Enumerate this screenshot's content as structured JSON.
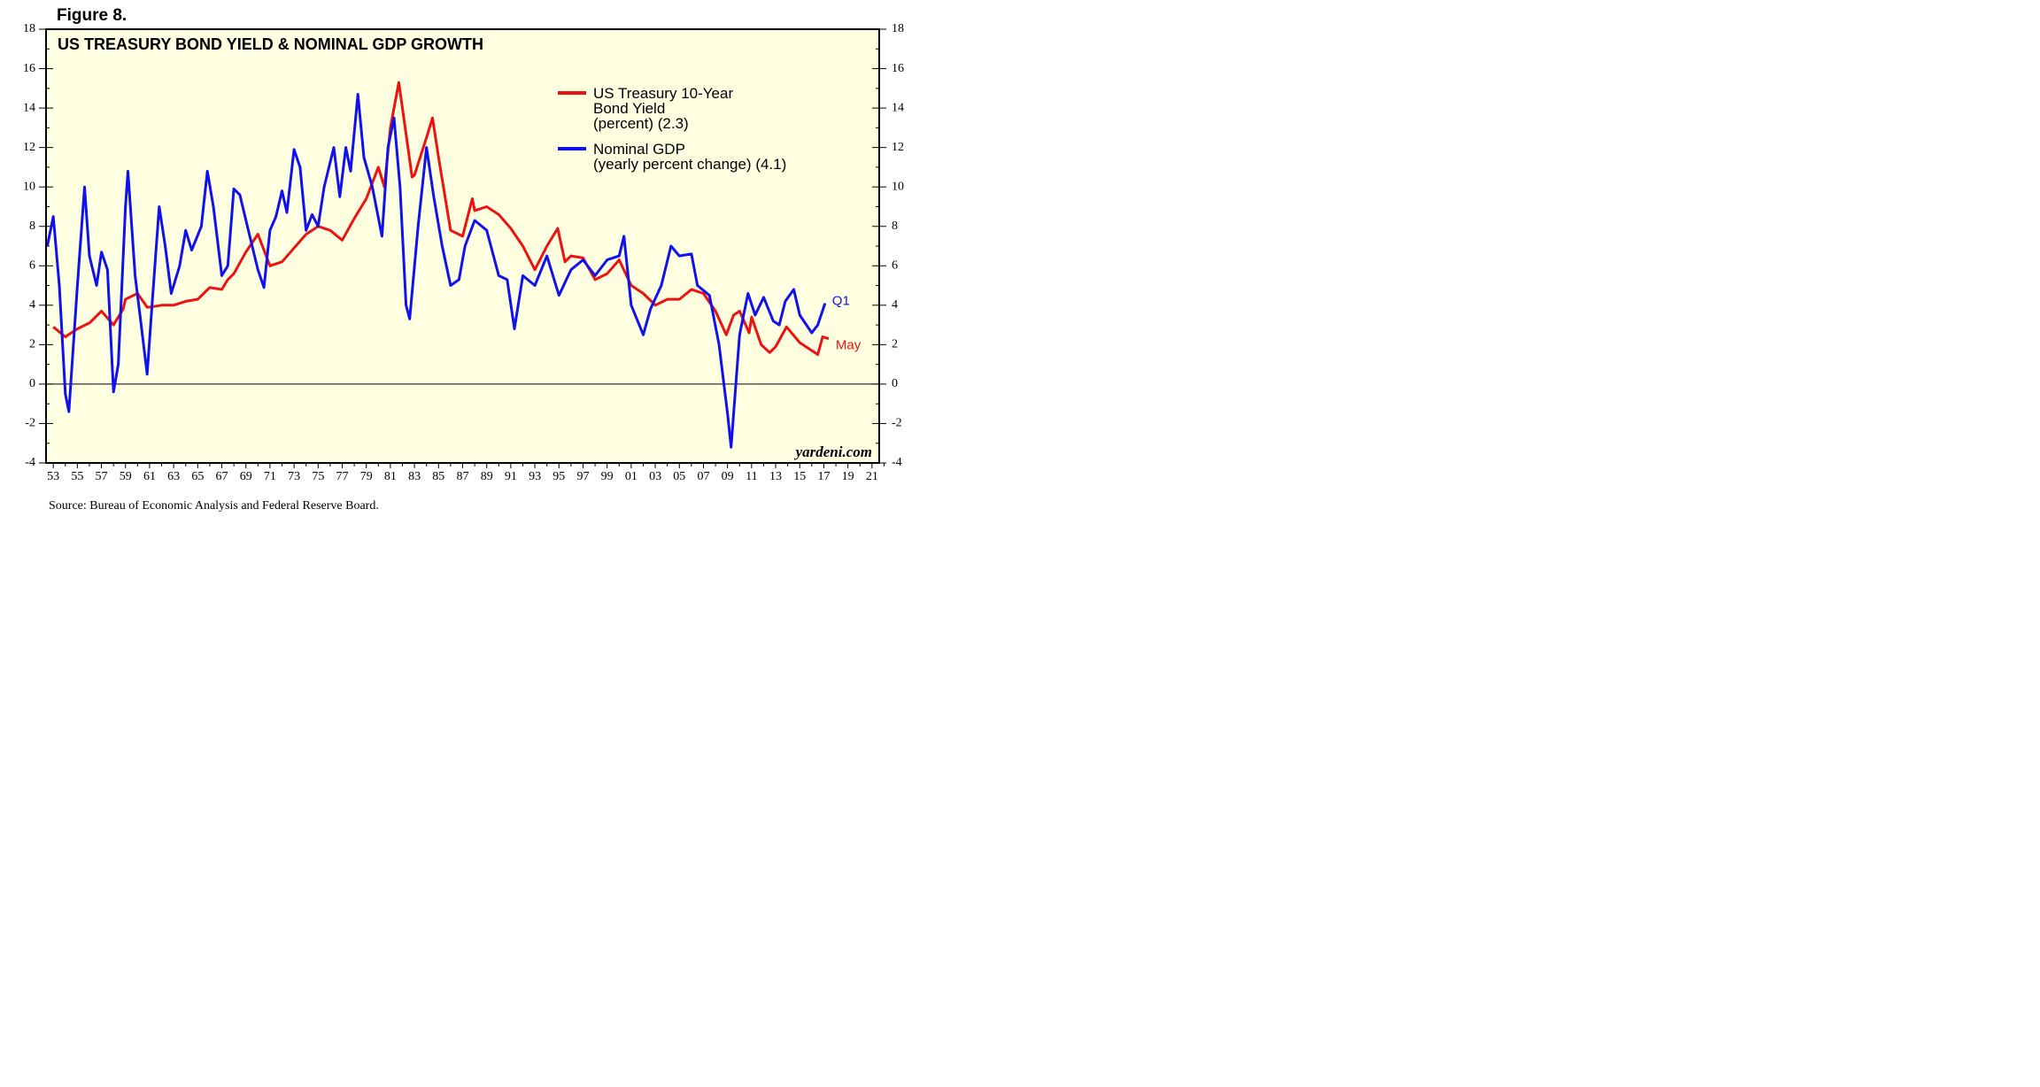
{
  "chart_data": {
    "type": "line",
    "figure_label": "Figure 8.",
    "title": "US TREASURY BOND YIELD & NOMINAL GDP GROWTH",
    "source": "Source: Bureau of Economic Analysis and Federal Reserve Board.",
    "watermark": "yardeni.com",
    "xlim": [
      1952.4,
      2021.6
    ],
    "xticks": [
      {
        "value": 1953,
        "label": "53"
      },
      {
        "value": 1955,
        "label": "55"
      },
      {
        "value": 1957,
        "label": "57"
      },
      {
        "value": 1959,
        "label": "59"
      },
      {
        "value": 1961,
        "label": "61"
      },
      {
        "value": 1963,
        "label": "63"
      },
      {
        "value": 1965,
        "label": "65"
      },
      {
        "value": 1967,
        "label": "67"
      },
      {
        "value": 1969,
        "label": "69"
      },
      {
        "value": 1971,
        "label": "71"
      },
      {
        "value": 1973,
        "label": "73"
      },
      {
        "value": 1975,
        "label": "75"
      },
      {
        "value": 1977,
        "label": "77"
      },
      {
        "value": 1979,
        "label": "79"
      },
      {
        "value": 1981,
        "label": "81"
      },
      {
        "value": 1983,
        "label": "83"
      },
      {
        "value": 1985,
        "label": "85"
      },
      {
        "value": 1987,
        "label": "87"
      },
      {
        "value": 1989,
        "label": "89"
      },
      {
        "value": 1991,
        "label": "91"
      },
      {
        "value": 1993,
        "label": "93"
      },
      {
        "value": 1995,
        "label": "95"
      },
      {
        "value": 1997,
        "label": "97"
      },
      {
        "value": 1999,
        "label": "99"
      },
      {
        "value": 2001,
        "label": "01"
      },
      {
        "value": 2003,
        "label": "03"
      },
      {
        "value": 2005,
        "label": "05"
      },
      {
        "value": 2007,
        "label": "07"
      },
      {
        "value": 2009,
        "label": "09"
      },
      {
        "value": 2011,
        "label": "11"
      },
      {
        "value": 2013,
        "label": "13"
      },
      {
        "value": 2015,
        "label": "15"
      },
      {
        "value": 2017,
        "label": "17"
      },
      {
        "value": 2019,
        "label": "19"
      },
      {
        "value": 2021,
        "label": "21"
      }
    ],
    "ylim": [
      -4,
      18
    ],
    "yticks": [
      -4,
      -2,
      0,
      2,
      4,
      6,
      8,
      10,
      12,
      14,
      16,
      18
    ],
    "y2lim": [
      -4,
      18
    ],
    "y2ticks": [
      -4,
      -2,
      0,
      2,
      4,
      6,
      8,
      10,
      12,
      14,
      16,
      18
    ],
    "series": [
      {
        "name": "US Treasury 10-Year\nBond Yield\n(percent) (2.3)",
        "color": "#ee1111",
        "end_label": "May",
        "x": [
          1953,
          1954,
          1955,
          1956,
          1957,
          1958,
          1958.8,
          1959,
          1960,
          1960.8,
          1961,
          1962,
          1963,
          1964,
          1965,
          1966,
          1967,
          1967.5,
          1968,
          1969,
          1970,
          1971,
          1972,
          1973,
          1974,
          1975,
          1976,
          1977,
          1978,
          1979,
          1980,
          1980.5,
          1981,
          1981.7,
          1982,
          1982.8,
          1983,
          1984,
          1984.5,
          1985,
          1986,
          1987,
          1987.8,
          1988,
          1989,
          1990,
          1991,
          1992,
          1993,
          1994,
          1994.9,
          1995.5,
          1996,
          1997,
          1998,
          1999,
          2000,
          2001,
          2002,
          2003,
          2004,
          2005,
          2006,
          2007,
          2008,
          2008.9,
          2009.5,
          2010,
          2010.8,
          2011,
          2011.8,
          2012.5,
          2013,
          2013.9,
          2015,
          2016.5,
          2016.9,
          2017.4
        ],
        "values": [
          2.9,
          2.4,
          2.8,
          3.1,
          3.7,
          3.0,
          3.8,
          4.3,
          4.6,
          3.9,
          3.9,
          4.0,
          4.0,
          4.2,
          4.3,
          4.9,
          4.8,
          5.3,
          5.6,
          6.7,
          7.6,
          6.0,
          6.2,
          6.9,
          7.6,
          8.0,
          7.8,
          7.3,
          8.4,
          9.4,
          11.0,
          10.0,
          13.0,
          15.3,
          14.0,
          10.5,
          10.6,
          12.5,
          13.5,
          11.5,
          7.8,
          7.5,
          9.4,
          8.8,
          9.0,
          8.6,
          7.9,
          7.0,
          5.8,
          7.0,
          7.9,
          6.2,
          6.5,
          6.4,
          5.3,
          5.6,
          6.3,
          5.0,
          4.6,
          4.0,
          4.3,
          4.3,
          4.8,
          4.6,
          3.7,
          2.5,
          3.5,
          3.7,
          2.6,
          3.4,
          2.0,
          1.6,
          1.9,
          2.9,
          2.1,
          1.5,
          2.4,
          2.3
        ]
      },
      {
        "name": "Nominal GDP\n(yearly percent change) (4.1)",
        "color": "#1111ee",
        "end_label": "Q1",
        "x": [
          1952.5,
          1953,
          1953.5,
          1954,
          1954.3,
          1955,
          1955.6,
          1956,
          1956.6,
          1957,
          1957.5,
          1958,
          1958.4,
          1959,
          1959.2,
          1959.8,
          1960.2,
          1960.8,
          1961.2,
          1961.8,
          1962.3,
          1962.8,
          1963.5,
          1964,
          1964.5,
          1965.3,
          1965.8,
          1966.3,
          1967,
          1967.5,
          1968,
          1968.5,
          1969.2,
          1970,
          1970.5,
          1971,
          1971.5,
          1972,
          1972.4,
          1973,
          1973.5,
          1974,
          1974.5,
          1975,
          1975.5,
          1976.3,
          1976.8,
          1977.3,
          1977.7,
          1978.3,
          1978.8,
          1979.5,
          1980.3,
          1980.8,
          1981.3,
          1981.8,
          1982.3,
          1982.6,
          1983.3,
          1984,
          1984.6,
          1985.3,
          1986,
          1986.7,
          1987.2,
          1988,
          1989,
          1990,
          1990.7,
          1991.3,
          1992,
          1993,
          1994,
          1995,
          1996,
          1997,
          1998,
          1999,
          2000,
          2000.4,
          2001,
          2002,
          2002.6,
          2003.5,
          2004.3,
          2005,
          2006,
          2006.5,
          2007.5,
          2008.3,
          2009,
          2009.3,
          2010,
          2010.7,
          2011.3,
          2012,
          2012.8,
          2013.3,
          2013.8,
          2014.5,
          2015,
          2016,
          2016.5,
          2017.1
        ],
        "values": [
          7.0,
          8.5,
          5.0,
          -0.5,
          -1.4,
          5.0,
          10.0,
          6.5,
          5.0,
          6.7,
          5.8,
          -0.4,
          1.0,
          9.0,
          10.8,
          5.5,
          3.5,
          0.5,
          4.0,
          9.0,
          7.0,
          4.6,
          6.0,
          7.8,
          6.8,
          8.0,
          10.8,
          9.0,
          5.5,
          6.0,
          9.9,
          9.6,
          7.8,
          5.8,
          4.9,
          7.8,
          8.5,
          9.8,
          8.7,
          11.9,
          11.0,
          7.8,
          8.6,
          8.0,
          10.0,
          12.0,
          9.5,
          12.0,
          10.8,
          14.7,
          11.5,
          10.0,
          7.5,
          12.0,
          13.5,
          10.0,
          4.0,
          3.3,
          8.0,
          12.0,
          9.5,
          7.0,
          5.0,
          5.3,
          7.0,
          8.3,
          7.8,
          5.5,
          5.3,
          2.8,
          5.5,
          5.0,
          6.5,
          4.5,
          5.8,
          6.3,
          5.5,
          6.3,
          6.5,
          7.5,
          4.0,
          2.5,
          3.8,
          5.0,
          7.0,
          6.5,
          6.6,
          5.0,
          4.5,
          2.0,
          -1.5,
          -3.2,
          2.5,
          4.6,
          3.5,
          4.4,
          3.2,
          3.0,
          4.2,
          4.8,
          3.5,
          2.6,
          3.0,
          4.1
        ]
      }
    ]
  }
}
